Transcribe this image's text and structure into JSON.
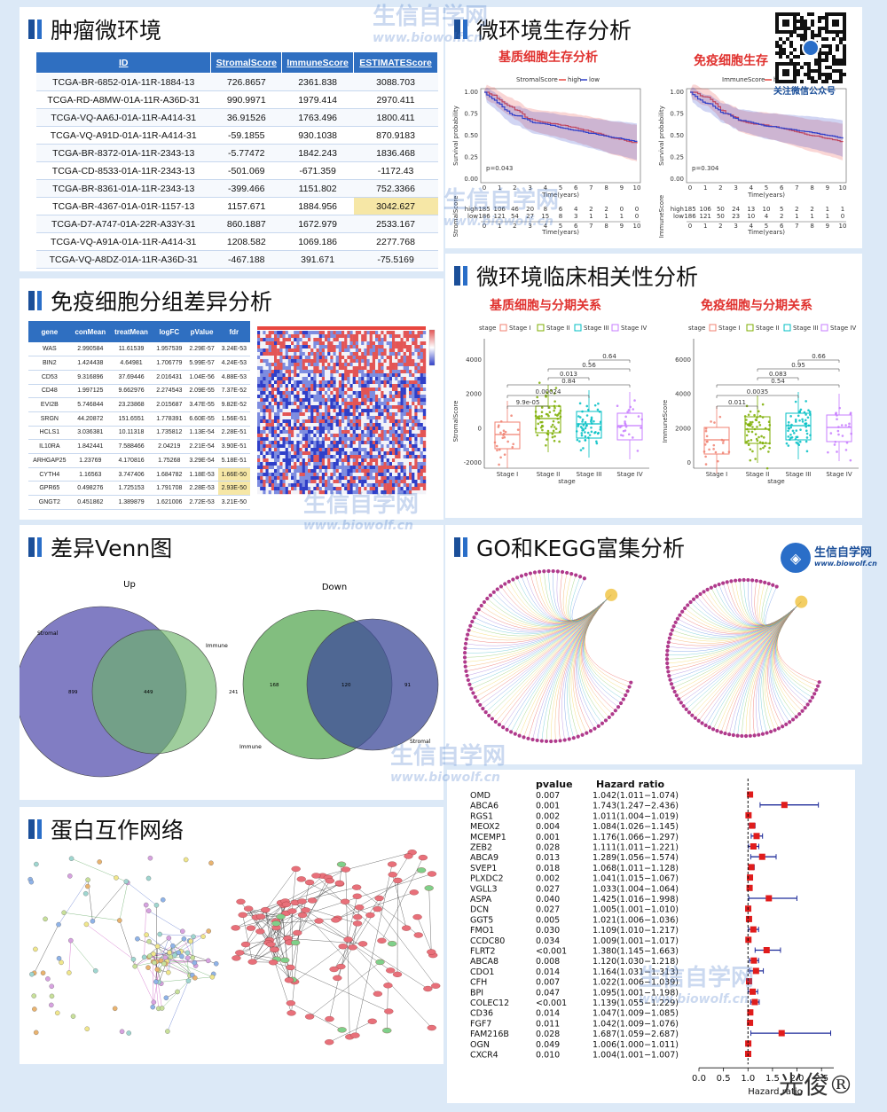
{
  "panels": {
    "tumor": "肿瘤微环境",
    "survival": "微环境生存分析",
    "diff": "免疫细胞分组差异分析",
    "clinical": "微环境临床相关性分析",
    "venn": "差异Venn图",
    "go": "GO和KEGG富集分析",
    "ppi": "蛋白互作网络"
  },
  "score_table": {
    "headers": [
      "ID",
      "StromalScore",
      "ImmuneScore",
      "ESTIMATEScore"
    ],
    "rows": [
      [
        "TCGA-BR-6852-01A-11R-1884-13",
        "726.8657",
        "2361.838",
        "3088.703"
      ],
      [
        "TCGA-RD-A8MW-01A-11R-A36D-31",
        "990.9971",
        "1979.414",
        "2970.411"
      ],
      [
        "TCGA-VQ-AA6J-01A-11R-A414-31",
        "36.91526",
        "1763.496",
        "1800.411"
      ],
      [
        "TCGA-VQ-A91D-01A-11R-A414-31",
        "-59.1855",
        "930.1038",
        "870.9183"
      ],
      [
        "TCGA-BR-8372-01A-11R-2343-13",
        "-5.77472",
        "1842.243",
        "1836.468"
      ],
      [
        "TCGA-CD-8533-01A-11R-2343-13",
        "-501.069",
        "-671.359",
        "-1172.43"
      ],
      [
        "TCGA-BR-8361-01A-11R-2343-13",
        "-399.466",
        "1151.802",
        "752.3366"
      ],
      [
        "TCGA-BR-4367-01A-01R-1157-13",
        "1157.671",
        "1884.956",
        "3042.627"
      ],
      [
        "TCGA-D7-A747-01A-22R-A33Y-31",
        "860.1887",
        "1672.979",
        "2533.167"
      ],
      [
        "TCGA-VQ-A91A-01A-11R-A414-31",
        "1208.582",
        "1069.186",
        "2277.768"
      ],
      [
        "TCGA-VQ-A8DZ-01A-11R-A36D-31",
        "-467.188",
        "391.671",
        "-75.5169"
      ]
    ]
  },
  "survival": {
    "stromal_title": "基质细胞生存分析",
    "immune_title": "免疫细胞生存",
    "stromal_legend": "StromalScore",
    "immune_legend": "ImmuneScore",
    "legend_high": "high",
    "legend_low": "low",
    "stromal_p": "p=0.043",
    "immune_p": "p=0.304",
    "xlabel": "Time(years)",
    "ylabel": "Survival probability",
    "risk_ylabel_stromal": "StromalScore",
    "risk_ylabel_immune": "ImmuneScore",
    "risk_high_stromal": [
      "185",
      "106",
      "46",
      "20",
      "8",
      "6",
      "4",
      "2",
      "2",
      "0",
      "0"
    ],
    "risk_low_stromal": [
      "186",
      "121",
      "54",
      "27",
      "15",
      "8",
      "3",
      "1",
      "1",
      "1",
      "0"
    ],
    "risk_high_immune": [
      "185",
      "106",
      "50",
      "24",
      "13",
      "10",
      "5",
      "2",
      "2",
      "1",
      "1"
    ],
    "risk_low_immune": [
      "186",
      "121",
      "50",
      "23",
      "10",
      "4",
      "2",
      "1",
      "1",
      "1",
      "0"
    ],
    "xticks": [
      "0",
      "1",
      "2",
      "3",
      "4",
      "5",
      "6",
      "7",
      "8",
      "9",
      "10"
    ],
    "yticks": [
      "0.00",
      "0.25",
      "0.50",
      "0.75",
      "1.00"
    ]
  },
  "diff_table": {
    "headers": [
      "gene",
      "conMean",
      "treatMean",
      "logFC",
      "pValue",
      "fdr"
    ],
    "rows": [
      [
        "WAS",
        "2.990584",
        "11.61539",
        "1.957539",
        "2.29E-57",
        "3.24E-53"
      ],
      [
        "BIN2",
        "1.424438",
        "4.64981",
        "1.706779",
        "5.99E-57",
        "4.24E-53"
      ],
      [
        "CD53",
        "9.316896",
        "37.69446",
        "2.016431",
        "1.04E-56",
        "4.88E-53"
      ],
      [
        "CD48",
        "1.997125",
        "9.662976",
        "2.274543",
        "2.09E-55",
        "7.37E-52"
      ],
      [
        "EVI2B",
        "5.746844",
        "23.23868",
        "2.015687",
        "3.47E-55",
        "9.82E-52"
      ],
      [
        "SRGN",
        "44.20872",
        "151.6551",
        "1.778391",
        "6.60E-55",
        "1.56E-51"
      ],
      [
        "HCLS1",
        "3.036381",
        "10.11318",
        "1.735812",
        "1.13E-54",
        "2.28E-51"
      ],
      [
        "IL10RA",
        "1.842441",
        "7.588466",
        "2.04219",
        "2.21E-54",
        "3.90E-51"
      ],
      [
        "ARHGAP25",
        "1.23769",
        "4.170816",
        "1.75268",
        "3.29E-54",
        "5.18E-51"
      ],
      [
        "CYTH4",
        "1.16563",
        "3.747406",
        "1.684782",
        "1.18E-53",
        "1.66E-50"
      ],
      [
        "GPR65",
        "0.498276",
        "1.725153",
        "1.791708",
        "2.28E-53",
        "2.93E-50"
      ],
      [
        "GNGT2",
        "0.451862",
        "1.389879",
        "1.621006",
        "2.72E-53",
        "3.21E-50"
      ]
    ]
  },
  "clinical": {
    "stromal_title": "基质细胞与分期关系",
    "immune_title": "免疫细胞与分期关系",
    "legend_label": "stage",
    "stages": [
      "Stage I",
      "Stage II",
      "Stage III",
      "Stage IV"
    ],
    "stage_colors": [
      "#f08070",
      "#7cae00",
      "#00bfc4",
      "#c77cff"
    ],
    "xlabel": "stage",
    "stromal_ylabel": "StromalScore",
    "immune_ylabel": "ImmuneScore",
    "stromal_yticks": [
      "-2000",
      "0",
      "2000",
      "4000"
    ],
    "immune_yticks": [
      "0",
      "2000",
      "4000",
      "6000"
    ],
    "stromal_p": [
      "9.9e-05",
      "0.00024",
      "0.013",
      "0.84",
      "0.56",
      "0.64"
    ],
    "immune_p": [
      "0.011",
      "0.0035",
      "0.083",
      "0.54",
      "0.95",
      "0.66"
    ]
  },
  "venn": {
    "up_title": "Up",
    "down_title": "Down",
    "up_left": "Stromal",
    "up_right": "Immune",
    "up_counts": [
      "899",
      "449",
      "241"
    ],
    "down_left": "Immune",
    "down_right": "Stromal",
    "down_counts": [
      "168",
      "120",
      "91"
    ],
    "left_color": "#6b66b8",
    "right_color": "#6cb368"
  },
  "forest": {
    "col_pvalue": "pvalue",
    "col_hr": "Hazard ratio",
    "xlabel": "Hazard ratio",
    "xticks": [
      "0.0",
      "0.5",
      "1.0",
      "1.5",
      "2.0",
      "2.5"
    ],
    "rows": [
      {
        "gene": "OMD",
        "p": "0.007",
        "hr_text": "1.042(1.011−1.074)",
        "hr": 1.042,
        "lo": 1.011,
        "hi": 1.074
      },
      {
        "gene": "ABCA6",
        "p": "0.001",
        "hr_text": "1.743(1.247−2.436)",
        "hr": 1.743,
        "lo": 1.247,
        "hi": 2.436
      },
      {
        "gene": "RGS1",
        "p": "0.002",
        "hr_text": "1.011(1.004−1.019)",
        "hr": 1.011,
        "lo": 1.004,
        "hi": 1.019
      },
      {
        "gene": "MEOX2",
        "p": "0.004",
        "hr_text": "1.084(1.026−1.145)",
        "hr": 1.084,
        "lo": 1.026,
        "hi": 1.145
      },
      {
        "gene": "MCEMP1",
        "p": "0.001",
        "hr_text": "1.176(1.066−1.297)",
        "hr": 1.176,
        "lo": 1.066,
        "hi": 1.297
      },
      {
        "gene": "ZEB2",
        "p": "0.028",
        "hr_text": "1.111(1.011−1.221)",
        "hr": 1.111,
        "lo": 1.011,
        "hi": 1.221
      },
      {
        "gene": "ABCA9",
        "p": "0.013",
        "hr_text": "1.289(1.056−1.574)",
        "hr": 1.289,
        "lo": 1.056,
        "hi": 1.574
      },
      {
        "gene": "SVEP1",
        "p": "0.018",
        "hr_text": "1.068(1.011−1.128)",
        "hr": 1.068,
        "lo": 1.011,
        "hi": 1.128
      },
      {
        "gene": "PLXDC2",
        "p": "0.002",
        "hr_text": "1.041(1.015−1.067)",
        "hr": 1.041,
        "lo": 1.015,
        "hi": 1.067
      },
      {
        "gene": "VGLL3",
        "p": "0.027",
        "hr_text": "1.033(1.004−1.064)",
        "hr": 1.033,
        "lo": 1.004,
        "hi": 1.064
      },
      {
        "gene": "ASPA",
        "p": "0.040",
        "hr_text": "1.425(1.016−1.998)",
        "hr": 1.425,
        "lo": 1.016,
        "hi": 1.998
      },
      {
        "gene": "DCN",
        "p": "0.027",
        "hr_text": "1.005(1.001−1.010)",
        "hr": 1.005,
        "lo": 1.001,
        "hi": 1.01
      },
      {
        "gene": "GGT5",
        "p": "0.005",
        "hr_text": "1.021(1.006−1.036)",
        "hr": 1.021,
        "lo": 1.006,
        "hi": 1.036
      },
      {
        "gene": "FMO1",
        "p": "0.030",
        "hr_text": "1.109(1.010−1.217)",
        "hr": 1.109,
        "lo": 1.01,
        "hi": 1.217
      },
      {
        "gene": "CCDC80",
        "p": "0.034",
        "hr_text": "1.009(1.001−1.017)",
        "hr": 1.009,
        "lo": 1.001,
        "hi": 1.017
      },
      {
        "gene": "FLRT2",
        "p": "<0.001",
        "hr_text": "1.380(1.145−1.663)",
        "hr": 1.38,
        "lo": 1.145,
        "hi": 1.663
      },
      {
        "gene": "ABCA8",
        "p": "0.008",
        "hr_text": "1.120(1.030−1.218)",
        "hr": 1.12,
        "lo": 1.03,
        "hi": 1.218
      },
      {
        "gene": "CDO1",
        "p": "0.014",
        "hr_text": "1.164(1.031−1.313)",
        "hr": 1.164,
        "lo": 1.031,
        "hi": 1.313
      },
      {
        "gene": "CFH",
        "p": "0.007",
        "hr_text": "1.022(1.006−1.039)",
        "hr": 1.022,
        "lo": 1.006,
        "hi": 1.039
      },
      {
        "gene": "BPI",
        "p": "0.047",
        "hr_text": "1.095(1.001−1.198)",
        "hr": 1.095,
        "lo": 1.001,
        "hi": 1.198
      },
      {
        "gene": "COLEC12",
        "p": "<0.001",
        "hr_text": "1.139(1.055−1.229)",
        "hr": 1.139,
        "lo": 1.055,
        "hi": 1.229
      },
      {
        "gene": "CD36",
        "p": "0.014",
        "hr_text": "1.047(1.009−1.085)",
        "hr": 1.047,
        "lo": 1.009,
        "hi": 1.085
      },
      {
        "gene": "FGF7",
        "p": "0.011",
        "hr_text": "1.042(1.009−1.076)",
        "hr": 1.042,
        "lo": 1.009,
        "hi": 1.076
      },
      {
        "gene": "FAM216B",
        "p": "0.028",
        "hr_text": "1.687(1.059−2.687)",
        "hr": 1.687,
        "lo": 1.059,
        "hi": 2.687
      },
      {
        "gene": "OGN",
        "p": "0.049",
        "hr_text": "1.006(1.000−1.011)",
        "hr": 1.006,
        "lo": 1.0,
        "hi": 1.011
      },
      {
        "gene": "CXCR4",
        "p": "0.010",
        "hr_text": "1.004(1.001−1.007)",
        "hr": 1.004,
        "lo": 1.001,
        "hi": 1.007
      }
    ]
  },
  "brand": {
    "watermark": "生信自学网",
    "watermark_url": "www.biowolf.cn",
    "qr_caption": "关注微信公众号",
    "logo_cn": "生信自学网",
    "logo_url": "www.biowolf.cn",
    "signature": "光俊®"
  },
  "colors": {
    "accent": "#2f6fc1",
    "high": "#e8463f",
    "low": "#2f3fc9",
    "title_red": "#e0322f"
  }
}
